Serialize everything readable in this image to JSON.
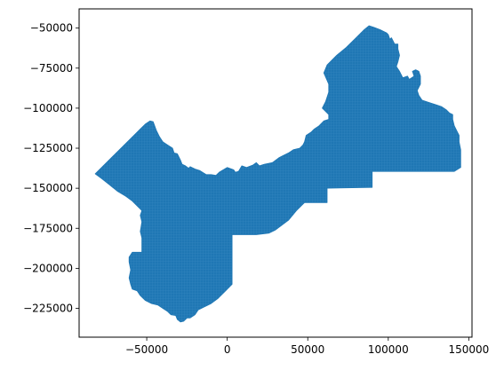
{
  "chart_data": {
    "type": "map",
    "xlim": [
      -92000,
      152000
    ],
    "ylim": [
      -243000,
      -38000
    ],
    "x_ticks": [
      {
        "value": -50000,
        "label": "−50000"
      },
      {
        "value": 0,
        "label": "0"
      },
      {
        "value": 50000,
        "label": "50000"
      },
      {
        "value": 100000,
        "label": "100000"
      },
      {
        "value": 150000,
        "label": "150000"
      }
    ],
    "y_ticks": [
      {
        "value": -50000,
        "label": "−50000"
      },
      {
        "value": -75000,
        "label": "−75000"
      },
      {
        "value": -100000,
        "label": "−100000"
      },
      {
        "value": -125000,
        "label": "−125000"
      },
      {
        "value": -150000,
        "label": "−150000"
      },
      {
        "value": -175000,
        "label": "−175000"
      },
      {
        "value": -200000,
        "label": "−200000"
      },
      {
        "value": -225000,
        "label": "−225000"
      }
    ],
    "fill_color": "#1f77b4",
    "grid": false,
    "legend": "none",
    "region_outline": [
      [
        -82000,
        -141000
      ],
      [
        -59000,
        -118000
      ],
      [
        -56000,
        -115000
      ],
      [
        -54000,
        -113000
      ],
      [
        -51000,
        -110000
      ],
      [
        -48000,
        -108000
      ],
      [
        -46000,
        -108500
      ],
      [
        -44000,
        -114000
      ],
      [
        -42000,
        -118000
      ],
      [
        -40000,
        -121000
      ],
      [
        -37000,
        -123000
      ],
      [
        -34000,
        -125000
      ],
      [
        -33000,
        -128000
      ],
      [
        -31000,
        -128500
      ],
      [
        -29000,
        -132500
      ],
      [
        -28000,
        -135000
      ],
      [
        -26000,
        -136000
      ],
      [
        -24000,
        -137500
      ],
      [
        -23000,
        -136500
      ],
      [
        -20000,
        -138000
      ],
      [
        -17000,
        -139000
      ],
      [
        -13000,
        -141500
      ],
      [
        -10000,
        -141500
      ],
      [
        -7000,
        -142000
      ],
      [
        -5000,
        -140000
      ],
      [
        0,
        -137000
      ],
      [
        4000,
        -138500
      ],
      [
        5000,
        -140000
      ],
      [
        7000,
        -139500
      ],
      [
        9000,
        -136000
      ],
      [
        12000,
        -137000
      ],
      [
        16000,
        -135500
      ],
      [
        18000,
        -134000
      ],
      [
        20000,
        -136000
      ],
      [
        23000,
        -135000
      ],
      [
        28000,
        -134000
      ],
      [
        32000,
        -131000
      ],
      [
        34000,
        -130000
      ],
      [
        38000,
        -128000
      ],
      [
        41000,
        -126000
      ],
      [
        45000,
        -125000
      ],
      [
        47000,
        -123000
      ],
      [
        48000,
        -121000
      ],
      [
        49000,
        -117000
      ],
      [
        52000,
        -115000
      ],
      [
        54000,
        -113000
      ],
      [
        57000,
        -111000
      ],
      [
        60000,
        -108000
      ],
      [
        63000,
        -107000
      ],
      [
        63000,
        -104000
      ],
      [
        59000,
        -100000
      ],
      [
        61000,
        -96000
      ],
      [
        63000,
        -90000
      ],
      [
        63000,
        -85000
      ],
      [
        60000,
        -78000
      ],
      [
        62000,
        -73000
      ],
      [
        68000,
        -67000
      ],
      [
        74000,
        -62000
      ],
      [
        80000,
        -56000
      ],
      [
        85000,
        -51000
      ],
      [
        88000,
        -48500
      ],
      [
        91000,
        -49500
      ],
      [
        95000,
        -51000
      ],
      [
        99000,
        -53000
      ],
      [
        100000,
        -54000
      ],
      [
        101000,
        -57000
      ],
      [
        102000,
        -56000
      ],
      [
        103000,
        -58000
      ],
      [
        104000,
        -60000
      ],
      [
        106000,
        -60000
      ],
      [
        106000,
        -63000
      ],
      [
        107000,
        -67000
      ],
      [
        106000,
        -71000
      ],
      [
        105000,
        -74000
      ],
      [
        107000,
        -77000
      ],
      [
        109000,
        -81000
      ],
      [
        112000,
        -80000
      ],
      [
        113000,
        -82000
      ],
      [
        116000,
        -80000
      ],
      [
        115000,
        -77000
      ],
      [
        117000,
        -76000
      ],
      [
        119000,
        -77000
      ],
      [
        120000,
        -80000
      ],
      [
        120000,
        -85000
      ],
      [
        118000,
        -89000
      ],
      [
        119000,
        -92000
      ],
      [
        121000,
        -95000
      ],
      [
        124000,
        -96000
      ],
      [
        127000,
        -97000
      ],
      [
        130000,
        -98000
      ],
      [
        133000,
        -99000
      ],
      [
        136000,
        -101000
      ],
      [
        138000,
        -103000
      ],
      [
        140000,
        -104000
      ],
      [
        140000,
        -107000
      ],
      [
        141000,
        -111000
      ],
      [
        143000,
        -115000
      ],
      [
        144000,
        -117000
      ],
      [
        144000,
        -121000
      ],
      [
        145000,
        -126000
      ],
      [
        145000,
        -131000
      ],
      [
        145000,
        -137000
      ],
      [
        141000,
        -139500
      ],
      [
        118000,
        -139500
      ],
      [
        102000,
        -139500
      ],
      [
        90000,
        -139500
      ],
      [
        90000,
        -149500
      ],
      [
        62000,
        -150000
      ],
      [
        62000,
        -159000
      ],
      [
        48000,
        -159000
      ],
      [
        43000,
        -164000
      ],
      [
        38000,
        -170000
      ],
      [
        30000,
        -176000
      ],
      [
        26000,
        -178000
      ],
      [
        18000,
        -179000
      ],
      [
        13000,
        -179000
      ],
      [
        3000,
        -179000
      ],
      [
        3000,
        -210000
      ],
      [
        0,
        -213000
      ],
      [
        -3000,
        -216000
      ],
      [
        -6000,
        -219000
      ],
      [
        -10000,
        -222000
      ],
      [
        -14000,
        -224000
      ],
      [
        -18000,
        -226000
      ],
      [
        -20000,
        -229000
      ],
      [
        -23000,
        -231000
      ],
      [
        -25000,
        -231000
      ],
      [
        -27000,
        -233000
      ],
      [
        -29000,
        -233500
      ],
      [
        -31000,
        -232000
      ],
      [
        -32000,
        -229500
      ],
      [
        -35000,
        -229000
      ],
      [
        -37000,
        -227000
      ],
      [
        -40000,
        -225000
      ],
      [
        -43000,
        -223000
      ],
      [
        -47000,
        -222000
      ],
      [
        -51000,
        -220000
      ],
      [
        -54000,
        -217000
      ],
      [
        -56000,
        -214000
      ],
      [
        -59000,
        -213000
      ],
      [
        -60000,
        -210000
      ],
      [
        -61000,
        -206000
      ],
      [
        -60000,
        -201000
      ],
      [
        -61000,
        -196000
      ],
      [
        -61000,
        -193000
      ],
      [
        -59000,
        -190000
      ],
      [
        -53000,
        -190000
      ],
      [
        -53000,
        -181000
      ],
      [
        -54000,
        -177000
      ],
      [
        -53000,
        -171000
      ],
      [
        -54000,
        -167000
      ],
      [
        -53000,
        -164000
      ],
      [
        -56000,
        -161000
      ],
      [
        -59000,
        -158000
      ],
      [
        -63000,
        -155000
      ],
      [
        -68000,
        -152000
      ],
      [
        -73000,
        -148000
      ],
      [
        -78000,
        -144000
      ]
    ]
  }
}
